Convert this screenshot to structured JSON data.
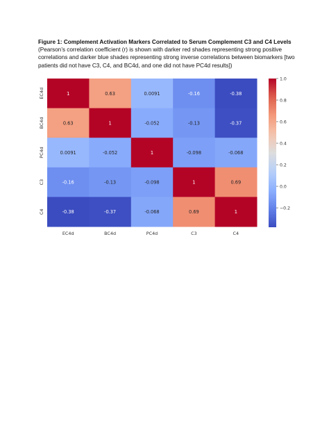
{
  "caption": {
    "title": "Figure 1: Complement Activation Markers Correlated to Serum Complement C3 and C4 Levels",
    "subtitle": "(Pearson’s correlation coefficient (r) is shown with darker red shades representing strong positive correlations and darker blue shades representing strong inverse correlations between biomarkers [two patients did not have C3, C4, and BC4d, and one did not have PC4d results])"
  },
  "chart_data": {
    "type": "heatmap",
    "title": "",
    "xlabel": "",
    "ylabel": "",
    "x_categories": [
      "EC4d",
      "BC4d",
      "PC4d",
      "C3",
      "C4"
    ],
    "y_categories": [
      "EC4d",
      "BC4d",
      "PC4d",
      "C3",
      "C4"
    ],
    "values": [
      [
        1,
        0.63,
        0.0091,
        -0.16,
        -0.38
      ],
      [
        0.63,
        1,
        -0.052,
        -0.13,
        -0.37
      ],
      [
        0.0091,
        -0.052,
        1,
        -0.098,
        -0.068
      ],
      [
        -0.16,
        -0.13,
        -0.098,
        1,
        0.69
      ],
      [
        -0.38,
        -0.37,
        -0.068,
        0.69,
        1
      ]
    ],
    "value_labels": [
      [
        "1",
        "0.63",
        "0.0091",
        "-0.16",
        "-0.38"
      ],
      [
        "0.63",
        "1",
        "-0.052",
        "-0.13",
        "-0.37"
      ],
      [
        "0.0091",
        "-0.052",
        "1",
        "-0.098",
        "-0.068"
      ],
      [
        "-0.16",
        "-0.13",
        "-0.098",
        "1",
        "0.69"
      ],
      [
        "-0.38",
        "-0.37",
        "-0.068",
        "0.69",
        "1"
      ]
    ],
    "colormap": "coolwarm",
    "vmin": -0.38,
    "vmax": 1.0,
    "colorbar_ticks": [
      1.0,
      0.8,
      0.6,
      0.4,
      0.2,
      0.0,
      -0.2
    ],
    "colorbar_tick_labels": [
      "1.0",
      "0.8",
      "0.6",
      "0.4",
      "0.2",
      "0.0",
      "−0.2"
    ],
    "colorbar_position": "right",
    "grid": false,
    "annotation_dark_color": "#262626",
    "annotation_light_color": "#ffffff",
    "axis_text_color": "#333333"
  }
}
